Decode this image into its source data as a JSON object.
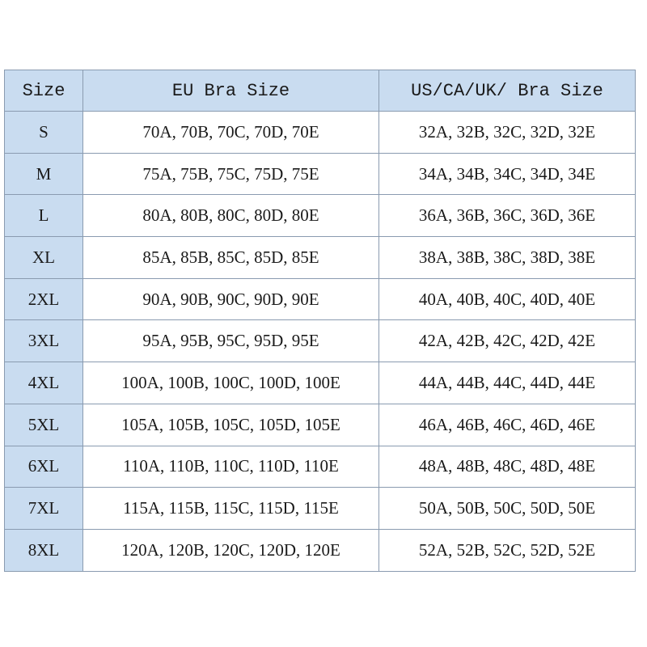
{
  "table": {
    "header": [
      "Size",
      "EU Bra Size",
      "US/CA/UK/ Bra Size"
    ],
    "rows": [
      [
        "S",
        "70A, 70B, 70C, 70D, 70E",
        "32A, 32B, 32C, 32D, 32E"
      ],
      [
        "M",
        "75A, 75B, 75C, 75D, 75E",
        "34A, 34B, 34C, 34D, 34E"
      ],
      [
        "L",
        "80A, 80B, 80C, 80D, 80E",
        "36A, 36B, 36C, 36D, 36E"
      ],
      [
        "XL",
        "85A, 85B, 85C, 85D, 85E",
        "38A, 38B, 38C, 38D, 38E"
      ],
      [
        "2XL",
        "90A, 90B, 90C, 90D, 90E",
        "40A, 40B, 40C, 40D, 40E"
      ],
      [
        "3XL",
        "95A, 95B, 95C, 95D, 95E",
        "42A, 42B, 42C, 42D, 42E"
      ],
      [
        "4XL",
        "100A, 100B, 100C, 100D, 100E",
        "44A, 44B, 44C, 44D, 44E"
      ],
      [
        "5XL",
        "105A, 105B, 105C, 105D, 105E",
        "46A, 46B, 46C, 46D, 46E"
      ],
      [
        "6XL",
        "110A, 110B, 110C, 110D, 110E",
        "48A, 48B, 48C, 48D, 48E"
      ],
      [
        "7XL",
        "115A, 115B, 115C, 115D, 115E",
        "50A, 50B, 50C, 50D, 50E"
      ],
      [
        "8XL",
        "120A, 120B, 120C, 120D, 120E",
        "52A, 52B, 52C, 52D, 52E"
      ]
    ]
  }
}
